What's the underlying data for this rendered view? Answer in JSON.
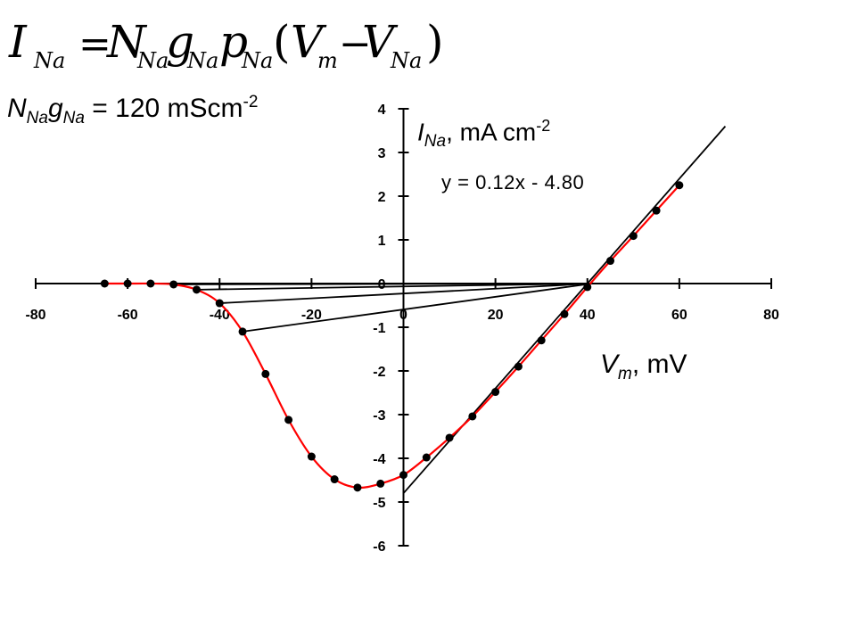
{
  "formula": {
    "lhs": "I",
    "lhs_sub": "Na",
    "equals": "=",
    "t1": "N",
    "t1_sub": "Na",
    "t2": "g",
    "t2_sub": "Na",
    "t3": "p",
    "t3_sub": "Na",
    "open": "(",
    "v1": "V",
    "v1_sub": "m",
    "minus": "−",
    "v2": "V",
    "v2_sub": "Na",
    "close": ")"
  },
  "params": {
    "n": "N",
    "n_sub": "Na",
    "g": "g",
    "g_sub": "Na",
    "value": " = 120 mScm",
    "exp": "-2"
  },
  "ylabel": {
    "sym": "I",
    "sub": "Na",
    "unit": ", mA cm",
    "exp": "-2"
  },
  "xlabel": {
    "sym": "V",
    "sub": "m",
    "unit": ", mV"
  },
  "equation": "y = 0.12x - 4.80",
  "colors": {
    "curve": "#ff0000",
    "marker": "#000000",
    "lines": "#000000",
    "axis": "#000000"
  },
  "chart_data": {
    "type": "scatter",
    "xlim": [
      -80,
      80
    ],
    "ylim": [
      -6,
      4
    ],
    "x_ticks": [
      -80,
      -60,
      -40,
      -20,
      0,
      20,
      40,
      60,
      80
    ],
    "y_ticks": [
      4,
      3,
      2,
      1,
      0,
      -1,
      -2,
      -3,
      -4,
      -5,
      -6
    ],
    "grid": false,
    "series": [
      {
        "style": "red-line-with-black-markers",
        "x": [
          -65,
          -60,
          -55,
          -50,
          -45,
          -40,
          -35,
          -30,
          -25,
          -20,
          -15,
          -10,
          -5,
          0,
          5,
          10,
          15,
          20,
          25,
          30,
          35,
          40,
          45,
          50,
          55,
          60
        ],
        "y": [
          0.0,
          0.0,
          0.0,
          -0.02,
          -0.14,
          -0.45,
          -1.1,
          -2.07,
          -3.12,
          -3.96,
          -4.48,
          -4.67,
          -4.58,
          -4.38,
          -3.98,
          -3.53,
          -3.04,
          -2.48,
          -1.9,
          -1.3,
          -0.7,
          -0.08,
          0.52,
          1.09,
          1.67,
          2.25
        ]
      }
    ],
    "fit_line": {
      "slope": 0.12,
      "intercept": -4.8,
      "x": [
        0,
        70
      ]
    },
    "chord_lines": [
      {
        "x": [
          -65,
          41
        ],
        "y": [
          0.0,
          0.0
        ]
      },
      {
        "x": [
          -50,
          41
        ],
        "y": [
          -0.02,
          0.0
        ]
      },
      {
        "x": [
          -45,
          41
        ],
        "y": [
          -0.14,
          0.0
        ]
      },
      {
        "x": [
          -40,
          41
        ],
        "y": [
          -0.45,
          0.0
        ]
      },
      {
        "x": [
          -35,
          41
        ],
        "y": [
          -1.1,
          0.0
        ]
      }
    ],
    "equation_label": "y = 0.12x - 4.80"
  }
}
